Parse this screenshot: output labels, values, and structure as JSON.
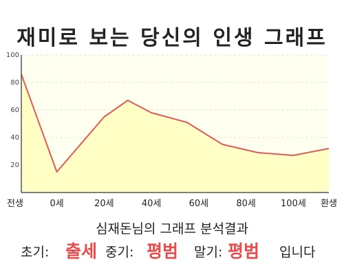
{
  "title": "재미로 보는 당신의 인생 그래프",
  "caption": "심재돈님의 그래프 분석결과",
  "verdict": {
    "early_label": "초기:",
    "early_value": "출세",
    "mid_label": "중기:",
    "mid_value": "평범",
    "late_label": "말기:",
    "late_value": "평범",
    "suffix": "입니다"
  },
  "colors": {
    "line": "#e05a5a",
    "fill": "#ffffc0",
    "plot_bg": "#fffff0",
    "highlight": "#e84c4c"
  },
  "chart_data": {
    "type": "area",
    "title": "재미로 보는 당신의 인생 그래프",
    "xlabel": "",
    "ylabel": "",
    "categories": [
      "전생",
      "0세",
      "20세",
      "40세",
      "60세",
      "80세",
      "100세",
      "환생"
    ],
    "x": [
      -15,
      0,
      20,
      30,
      40,
      55,
      70,
      85,
      100,
      115
    ],
    "y": [
      86,
      15,
      55,
      67,
      58,
      51,
      35,
      29,
      27,
      32
    ],
    "ylim": [
      0,
      100
    ],
    "yticks": [
      20,
      40,
      60,
      80,
      100
    ],
    "grid": true,
    "legend": "none"
  }
}
